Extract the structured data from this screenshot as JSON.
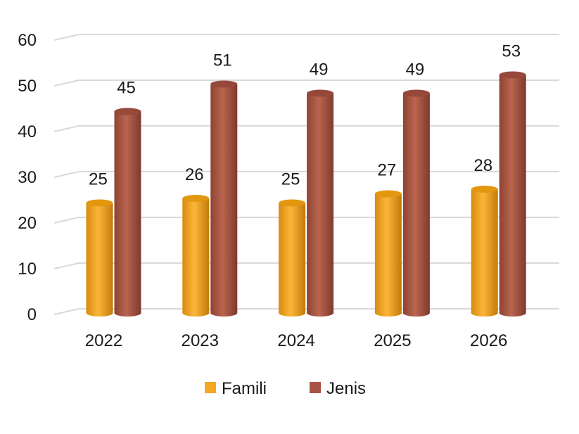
{
  "chart_data": {
    "type": "bar",
    "title": "",
    "xlabel": "",
    "ylabel": "",
    "categories": [
      "2022",
      "2023",
      "2024",
      "2025",
      "2026"
    ],
    "series": [
      {
        "name": "Famili",
        "values": [
          25,
          26,
          25,
          27,
          28
        ],
        "color": "#F5A623"
      },
      {
        "name": "Jenis",
        "values": [
          45,
          51,
          49,
          49,
          53
        ],
        "color": "#A85442"
      }
    ],
    "ylim": [
      0,
      60
    ],
    "yticks": [
      "0",
      "10",
      "20",
      "30",
      "40",
      "50",
      "60"
    ],
    "grid": true,
    "legend": "bottom",
    "style": "3d-cylinder"
  }
}
